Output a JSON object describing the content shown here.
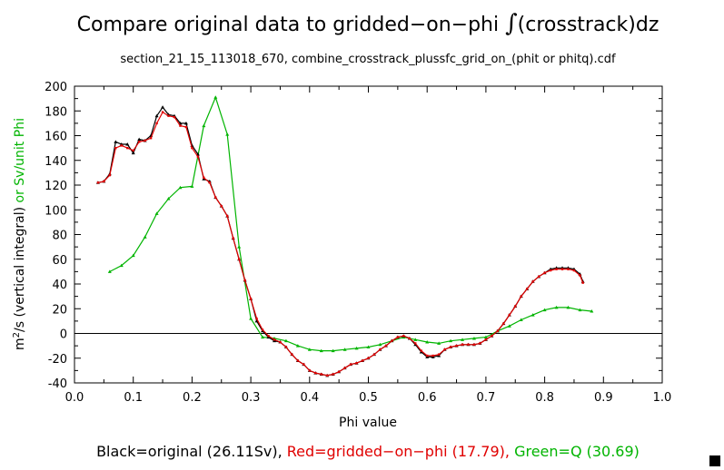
{
  "chart_data": {
    "type": "line",
    "title_main": "Compare original data to gridded−on−phi ",
    "title_integral": "∫",
    "title_tail": "(crosstrack)dz",
    "subtitle": "section_21_15_113018_670, combine_crosstrack_plussfc_grid_on_(phit or phitq).cdf",
    "xlabel": "Phi value",
    "ylabel_part1": "m",
    "ylabel_sup": "2",
    "ylabel_part2": "/s (vertical integral)",
    "ylabel_or": " or Sv/unit Phi",
    "xlim": [
      0.0,
      1.0
    ],
    "ylim": [
      -40,
      200
    ],
    "xticks": [
      "0.0",
      "0.1",
      "0.2",
      "0.3",
      "0.4",
      "0.5",
      "0.6",
      "0.7",
      "0.8",
      "0.9",
      "1.0"
    ],
    "yticks": [
      "-40",
      "-20",
      "0",
      "20",
      "40",
      "60",
      "80",
      "100",
      "120",
      "140",
      "160",
      "180",
      "200"
    ],
    "legend_black": "Black=original (26.11Sv), ",
    "legend_red": "Red=gridded−on−phi (17.79), ",
    "legend_green": "Green=Q (30.69)",
    "colors": {
      "black": "#000000",
      "red": "#e00000",
      "green": "#00b400"
    },
    "series": [
      {
        "name": "original",
        "color": "black",
        "x": [
          0.04,
          0.05,
          0.06,
          0.07,
          0.08,
          0.09,
          0.1,
          0.11,
          0.12,
          0.13,
          0.14,
          0.15,
          0.16,
          0.17,
          0.18,
          0.19,
          0.2,
          0.21,
          0.22,
          0.23,
          0.24,
          0.25,
          0.26,
          0.27,
          0.28,
          0.29,
          0.3,
          0.31,
          0.32,
          0.33,
          0.34,
          0.35,
          0.36,
          0.37,
          0.38,
          0.39,
          0.4,
          0.41,
          0.42,
          0.43,
          0.44,
          0.45,
          0.46,
          0.47,
          0.48,
          0.49,
          0.5,
          0.51,
          0.52,
          0.53,
          0.54,
          0.55,
          0.56,
          0.57,
          0.58,
          0.59,
          0.6,
          0.61,
          0.62,
          0.63,
          0.64,
          0.65,
          0.66,
          0.67,
          0.68,
          0.69,
          0.7,
          0.71,
          0.72,
          0.73,
          0.74,
          0.75,
          0.76,
          0.77,
          0.78,
          0.79,
          0.8,
          0.81,
          0.82,
          0.83,
          0.84,
          0.85,
          0.86,
          0.865
        ],
        "y": [
          122,
          123,
          129,
          155,
          153,
          153,
          146,
          157,
          156,
          160,
          176,
          183,
          177,
          176,
          170,
          170,
          152,
          145,
          125,
          123,
          110,
          103,
          95,
          77,
          60,
          43,
          28,
          10,
          2,
          -3,
          -6,
          -7,
          -11,
          -17,
          -22,
          -25,
          -30,
          -32,
          -33,
          -34,
          -33,
          -31,
          -28,
          -25,
          -24,
          -22,
          -20,
          -17,
          -13,
          -10,
          -6,
          -3,
          -2,
          -4,
          -9,
          -15,
          -19,
          -19,
          -18,
          -13,
          -11,
          -10,
          -9,
          -9,
          -9,
          -8,
          -5,
          -2,
          2,
          8,
          15,
          22,
          30,
          36,
          42,
          46,
          49,
          52,
          53,
          53,
          53,
          52,
          48,
          42
        ]
      },
      {
        "name": "gridded-on-phi",
        "color": "red",
        "x": [
          0.04,
          0.05,
          0.06,
          0.07,
          0.08,
          0.09,
          0.1,
          0.11,
          0.12,
          0.13,
          0.14,
          0.15,
          0.16,
          0.17,
          0.18,
          0.19,
          0.2,
          0.21,
          0.22,
          0.23,
          0.24,
          0.25,
          0.26,
          0.27,
          0.28,
          0.29,
          0.3,
          0.31,
          0.32,
          0.33,
          0.34,
          0.35,
          0.36,
          0.37,
          0.38,
          0.39,
          0.4,
          0.41,
          0.42,
          0.43,
          0.44,
          0.45,
          0.46,
          0.47,
          0.48,
          0.49,
          0.5,
          0.51,
          0.52,
          0.53,
          0.54,
          0.55,
          0.56,
          0.57,
          0.58,
          0.59,
          0.6,
          0.61,
          0.62,
          0.63,
          0.64,
          0.65,
          0.66,
          0.67,
          0.68,
          0.69,
          0.7,
          0.71,
          0.72,
          0.73,
          0.74,
          0.75,
          0.76,
          0.77,
          0.78,
          0.79,
          0.8,
          0.81,
          0.82,
          0.83,
          0.84,
          0.85,
          0.86,
          0.865
        ],
        "y": [
          122,
          123,
          128,
          150,
          152,
          150,
          148,
          155,
          156,
          158,
          170,
          179,
          176,
          175,
          168,
          167,
          150,
          143,
          126,
          122,
          110,
          103,
          95,
          77,
          60,
          43,
          28,
          12,
          3,
          -2,
          -5,
          -7,
          -11,
          -17,
          -22,
          -25,
          -30,
          -32,
          -33,
          -34,
          -33,
          -31,
          -28,
          -25,
          -24,
          -22,
          -20,
          -17,
          -13,
          -10,
          -6,
          -3,
          -2,
          -4,
          -8,
          -14,
          -18,
          -18,
          -17,
          -13,
          -11,
          -10,
          -9,
          -9,
          -9,
          -8,
          -5,
          -2,
          2,
          8,
          15,
          22,
          30,
          36,
          42,
          46,
          49,
          51,
          52,
          52,
          52,
          51,
          47,
          41
        ]
      },
      {
        "name": "Q",
        "color": "green",
        "x": [
          0.06,
          0.08,
          0.1,
          0.12,
          0.14,
          0.16,
          0.18,
          0.2,
          0.22,
          0.24,
          0.26,
          0.28,
          0.3,
          0.32,
          0.34,
          0.36,
          0.38,
          0.4,
          0.42,
          0.44,
          0.46,
          0.48,
          0.5,
          0.52,
          0.54,
          0.56,
          0.58,
          0.6,
          0.62,
          0.64,
          0.66,
          0.68,
          0.7,
          0.72,
          0.74,
          0.76,
          0.78,
          0.8,
          0.82,
          0.84,
          0.86,
          0.88
        ],
        "y": [
          50,
          55,
          63,
          78,
          97,
          109,
          118,
          119,
          168,
          191,
          161,
          70,
          12,
          -3,
          -4,
          -6,
          -10,
          -13,
          -14,
          -14,
          -13,
          -12,
          -11,
          -9,
          -6,
          -3,
          -5,
          -7,
          -8,
          -6,
          -5,
          -4,
          -3,
          2,
          6,
          11,
          15,
          19,
          21,
          21,
          19,
          18
        ]
      }
    ],
    "zero_line": 0
  }
}
